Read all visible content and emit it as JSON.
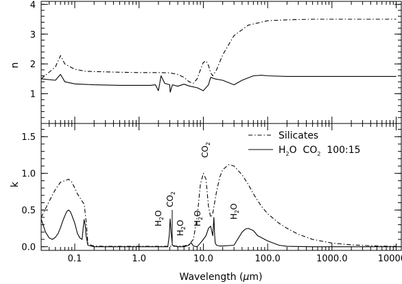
{
  "chart_data": [
    {
      "type": "line",
      "panel": "top",
      "ylabel": "n",
      "xscale": "log",
      "xlim": [
        0.03,
        12000
      ],
      "ylim": [
        0,
        4.1
      ],
      "yticks": [
        1,
        2,
        3,
        4
      ],
      "ytick_labels": [
        "1",
        "2",
        "3",
        "4"
      ],
      "series": [
        {
          "style": "dash-dot",
          "x": [
            0.03,
            0.05,
            0.06,
            0.07,
            0.1,
            0.15,
            0.5,
            1.0,
            2.0,
            3.0,
            4.0,
            5.0,
            6.0,
            7.0,
            8.0,
            9.0,
            10.0,
            11.0,
            12.0,
            13.0,
            14.0,
            16.0,
            20.0,
            30.0,
            50.0,
            100.0,
            200.0,
            500.0,
            1000.0,
            10000.0
          ],
          "y": [
            1.5,
            1.9,
            2.28,
            2.0,
            1.82,
            1.75,
            1.72,
            1.71,
            1.71,
            1.7,
            1.65,
            1.55,
            1.4,
            1.35,
            1.5,
            1.8,
            2.05,
            2.1,
            1.95,
            1.7,
            1.6,
            1.8,
            2.3,
            2.95,
            3.3,
            3.45,
            3.48,
            3.5,
            3.5,
            3.5
          ]
        },
        {
          "style": "solid",
          "x": [
            0.03,
            0.05,
            0.06,
            0.07,
            0.1,
            0.2,
            0.5,
            1.0,
            1.5,
            1.8,
            2.0,
            2.2,
            2.5,
            3.0,
            3.05,
            3.3,
            4.0,
            5.0,
            6.0,
            8.0,
            10.0,
            12.0,
            13.0,
            15.0,
            20.0,
            30.0,
            40.0,
            60.0,
            80.0,
            100.0,
            200.0,
            1000.0,
            10000.0
          ],
          "y": [
            1.5,
            1.45,
            1.65,
            1.4,
            1.33,
            1.3,
            1.28,
            1.28,
            1.28,
            1.3,
            1.1,
            1.6,
            1.35,
            1.3,
            1.05,
            1.3,
            1.25,
            1.32,
            1.26,
            1.2,
            1.1,
            1.3,
            1.55,
            1.5,
            1.45,
            1.3,
            1.45,
            1.6,
            1.62,
            1.6,
            1.58,
            1.58,
            1.58
          ]
        }
      ]
    },
    {
      "type": "line",
      "panel": "bottom",
      "xlabel_main": "Wavelength (",
      "xlabel_mu": "μ",
      "xlabel_rest": "m)",
      "ylabel": "k",
      "xscale": "log",
      "xlim": [
        0.03,
        12000
      ],
      "ylim": [
        -0.05,
        1.68
      ],
      "xticks": [
        0.1,
        1.0,
        10.0,
        100.0,
        1000.0,
        10000.0
      ],
      "xtick_labels": [
        "0.1",
        "1.0",
        "10.0",
        "100.0",
        "1000.0",
        "10000.0"
      ],
      "yticks": [
        0.0,
        0.5,
        1.0,
        1.5
      ],
      "ytick_labels": [
        "0.0",
        "0.5",
        "1.0",
        "1.5"
      ],
      "legend": {
        "position": "top-right",
        "entries": [
          "Silicates",
          "H",
          "2",
          "O  CO",
          "2",
          "  100:15"
        ]
      },
      "annotations": {
        "h2o_a": [
          "H",
          "2",
          "O"
        ],
        "co2_a": [
          "CO",
          "2"
        ],
        "h2o_b": [
          "H",
          "2",
          "O"
        ],
        "h2o_c": [
          "H",
          "2",
          "O"
        ],
        "co2_b": [
          "CO",
          "2"
        ],
        "h2o_d": [
          "H",
          "2",
          "O"
        ]
      },
      "series": [
        {
          "name": "Silicates",
          "style": "dash-dot",
          "x": [
            0.03,
            0.04,
            0.05,
            0.06,
            0.07,
            0.08,
            0.09,
            0.1,
            0.11,
            0.12,
            0.13,
            0.14,
            0.15,
            0.16,
            0.18,
            0.2,
            0.3,
            1.0,
            3.0,
            5.0,
            6.0,
            7.0,
            8.0,
            9.0,
            10.0,
            11.0,
            12.0,
            13.0,
            14.0,
            16.0,
            18.0,
            20.0,
            25.0,
            30.0,
            40.0,
            50.0,
            60.0,
            80.0,
            100.0,
            150.0,
            200.0,
            300.0,
            500.0,
            1000.0,
            2000.0,
            5000.0,
            10000.0
          ],
          "y": [
            0.4,
            0.62,
            0.78,
            0.88,
            0.9,
            0.92,
            0.88,
            0.8,
            0.72,
            0.67,
            0.62,
            0.58,
            0.35,
            0.05,
            0.02,
            0.01,
            0.005,
            0.005,
            0.005,
            0.01,
            0.03,
            0.1,
            0.4,
            0.85,
            1.0,
            0.92,
            0.55,
            0.4,
            0.45,
            0.75,
            0.95,
            1.05,
            1.12,
            1.1,
            0.98,
            0.85,
            0.72,
            0.55,
            0.45,
            0.32,
            0.25,
            0.17,
            0.1,
            0.05,
            0.025,
            0.01,
            0.005
          ]
        },
        {
          "name": "H2O CO2 100:15",
          "style": "solid",
          "x": [
            0.03,
            0.035,
            0.04,
            0.045,
            0.05,
            0.055,
            0.06,
            0.065,
            0.07,
            0.075,
            0.08,
            0.085,
            0.09,
            0.1,
            0.11,
            0.12,
            0.13,
            0.135,
            0.14,
            0.145,
            0.15,
            0.16,
            0.2,
            1.0,
            2.5,
            2.8,
            2.95,
            3.05,
            3.15,
            3.3,
            4.0,
            4.2,
            4.26,
            4.3,
            4.5,
            5.0,
            6.0,
            6.2,
            6.5,
            7.0,
            8.0,
            9.0,
            10.0,
            11.0,
            12.0,
            13.0,
            14.0,
            14.6,
            15.0,
            15.3,
            16.0,
            18.0,
            20.0,
            30.0,
            40.0,
            45.0,
            50.0,
            60.0,
            70.0,
            100.0,
            150.0,
            200.0,
            500.0,
            10000.0
          ],
          "y": [
            0.38,
            0.2,
            0.12,
            0.1,
            0.13,
            0.18,
            0.26,
            0.35,
            0.42,
            0.48,
            0.5,
            0.48,
            0.43,
            0.32,
            0.18,
            0.12,
            0.1,
            0.25,
            0.37,
            0.3,
            0.15,
            0.02,
            0.0,
            0.0,
            0.0,
            0.0,
            0.15,
            0.38,
            0.2,
            0.02,
            0.0,
            0.0,
            0.0,
            0.0,
            0.0,
            0.0,
            0.02,
            0.04,
            0.05,
            0.01,
            0.0,
            0.05,
            0.1,
            0.15,
            0.25,
            0.28,
            0.15,
            0.4,
            0.16,
            0.05,
            0.02,
            0.01,
            0.01,
            0.02,
            0.2,
            0.24,
            0.25,
            0.22,
            0.15,
            0.08,
            0.02,
            0.005,
            0.0,
            0.0
          ]
        }
      ]
    }
  ]
}
